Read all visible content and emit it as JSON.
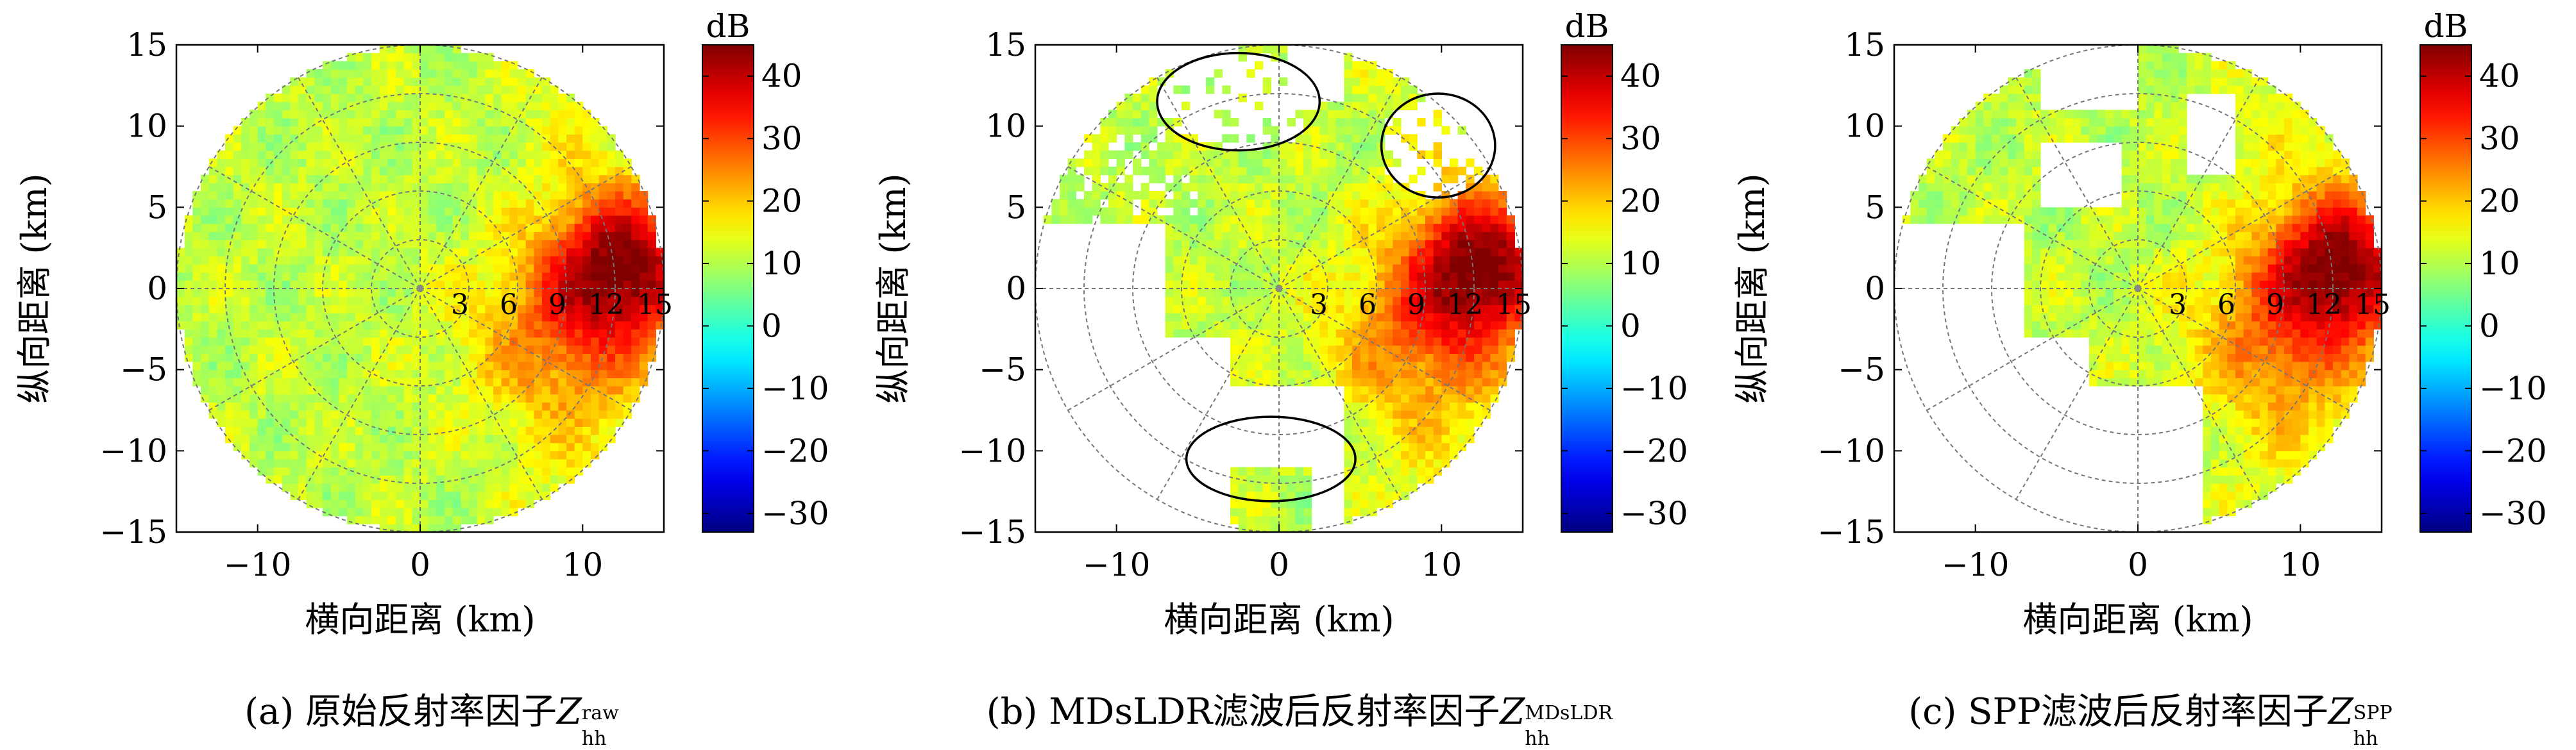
{
  "colorbar": {
    "unit": "dB",
    "ticks": [
      40,
      30,
      20,
      10,
      0,
      -10,
      -20,
      -30
    ],
    "range": [
      -33,
      45
    ],
    "colormap": "jet"
  },
  "axis_labels": {
    "ylabel": "纵向距离 (km)",
    "xlabel": "横向距离 (km)"
  },
  "chart_data": [
    {
      "type": "heatmap",
      "subtype": "polar-ppi",
      "panel_id": "a",
      "caption_prefix": "(a) 原始反射率因子",
      "caption_var": "Z",
      "caption_sub": "hh",
      "caption_sup": "raw",
      "x_ticks": [
        -10,
        0,
        10
      ],
      "y_ticks": [
        15,
        10,
        5,
        0,
        -5,
        -10,
        -15
      ],
      "xlim": [
        -15,
        15
      ],
      "ylim": [
        -15,
        15
      ],
      "range_rings_km": [
        3,
        6,
        9,
        12,
        15
      ],
      "range_ring_labels": [
        "3",
        "6",
        "9",
        "12",
        "15"
      ],
      "filter": "none",
      "ellipses": []
    },
    {
      "type": "heatmap",
      "subtype": "polar-ppi",
      "panel_id": "b",
      "caption_prefix": "(b) MDsLDR滤波后反射率因子",
      "caption_var": "Z",
      "caption_sub": "hh",
      "caption_sup": "MDsLDR",
      "x_ticks": [
        -10,
        0,
        10
      ],
      "y_ticks": [
        15,
        10,
        5,
        0,
        -5,
        -10,
        -15
      ],
      "xlim": [
        -15,
        15
      ],
      "ylim": [
        -15,
        15
      ],
      "range_rings_km": [
        3,
        6,
        9,
        12,
        15
      ],
      "range_ring_labels": [
        "3",
        "6",
        "9",
        "12",
        "15"
      ],
      "filter": "mdsldr",
      "ellipses": [
        {
          "cx": -2.5,
          "cy": 11.5,
          "rx": 5.0,
          "ry": 3.0
        },
        {
          "cx": 9.8,
          "cy": 8.8,
          "rx": 3.5,
          "ry": 3.2
        },
        {
          "cx": -0.5,
          "cy": -10.5,
          "rx": 5.2,
          "ry": 2.6
        }
      ]
    },
    {
      "type": "heatmap",
      "subtype": "polar-ppi",
      "panel_id": "c",
      "caption_prefix": "(c) SPP滤波后反射率因子",
      "caption_var": "Z",
      "caption_sub": "hh",
      "caption_sup": "SPP",
      "x_ticks": [
        -10,
        0,
        10
      ],
      "y_ticks": [
        15,
        10,
        5,
        0,
        -5,
        -10,
        -15
      ],
      "xlim": [
        -15,
        15
      ],
      "ylim": [
        -15,
        15
      ],
      "range_rings_km": [
        3,
        6,
        9,
        12,
        15
      ],
      "range_ring_labels": [
        "3",
        "6",
        "9",
        "12",
        "15"
      ],
      "filter": "spp",
      "ellipses": []
    }
  ]
}
